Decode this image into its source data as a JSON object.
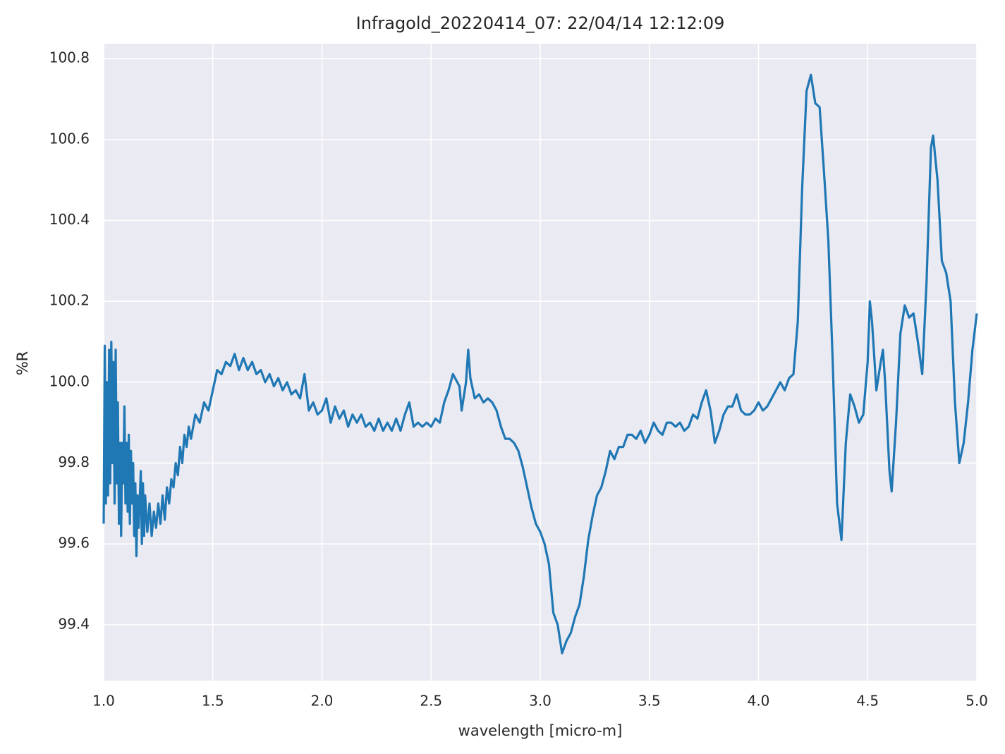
{
  "chart_data": {
    "type": "line",
    "title": "Infragold_20220414_07:  22/04/14 12:12:09",
    "xlabel": "wavelength [micro-m]",
    "ylabel": "%R",
    "x": [
      1.0,
      1.005,
      1.01,
      1.015,
      1.02,
      1.025,
      1.03,
      1.035,
      1.04,
      1.045,
      1.05,
      1.055,
      1.06,
      1.065,
      1.07,
      1.075,
      1.08,
      1.085,
      1.09,
      1.095,
      1.1,
      1.105,
      1.11,
      1.115,
      1.12,
      1.125,
      1.13,
      1.135,
      1.14,
      1.145,
      1.15,
      1.155,
      1.16,
      1.17,
      1.175,
      1.18,
      1.185,
      1.19,
      1.2,
      1.21,
      1.22,
      1.23,
      1.24,
      1.25,
      1.26,
      1.27,
      1.28,
      1.29,
      1.3,
      1.31,
      1.32,
      1.33,
      1.34,
      1.35,
      1.36,
      1.37,
      1.38,
      1.39,
      1.4,
      1.42,
      1.44,
      1.46,
      1.48,
      1.5,
      1.52,
      1.54,
      1.56,
      1.58,
      1.6,
      1.62,
      1.64,
      1.66,
      1.68,
      1.7,
      1.72,
      1.74,
      1.76,
      1.78,
      1.8,
      1.82,
      1.84,
      1.86,
      1.88,
      1.9,
      1.92,
      1.94,
      1.96,
      1.98,
      2.0,
      2.02,
      2.04,
      2.06,
      2.08,
      2.1,
      2.12,
      2.14,
      2.16,
      2.18,
      2.2,
      2.22,
      2.24,
      2.26,
      2.28,
      2.3,
      2.32,
      2.34,
      2.36,
      2.38,
      2.4,
      2.42,
      2.44,
      2.46,
      2.48,
      2.5,
      2.52,
      2.54,
      2.56,
      2.58,
      2.6,
      2.62,
      2.63,
      2.64,
      2.66,
      2.67,
      2.68,
      2.7,
      2.72,
      2.74,
      2.76,
      2.78,
      2.8,
      2.82,
      2.84,
      2.86,
      2.88,
      2.9,
      2.92,
      2.94,
      2.96,
      2.98,
      3.0,
      3.02,
      3.04,
      3.06,
      3.08,
      3.1,
      3.12,
      3.14,
      3.16,
      3.18,
      3.2,
      3.22,
      3.24,
      3.26,
      3.28,
      3.3,
      3.32,
      3.34,
      3.36,
      3.38,
      3.4,
      3.42,
      3.44,
      3.46,
      3.48,
      3.5,
      3.52,
      3.54,
      3.56,
      3.58,
      3.6,
      3.62,
      3.64,
      3.66,
      3.68,
      3.7,
      3.72,
      3.74,
      3.76,
      3.78,
      3.8,
      3.82,
      3.84,
      3.86,
      3.88,
      3.9,
      3.92,
      3.94,
      3.96,
      3.98,
      4.0,
      4.02,
      4.04,
      4.06,
      4.08,
      4.1,
      4.12,
      4.14,
      4.16,
      4.18,
      4.2,
      4.22,
      4.24,
      4.26,
      4.28,
      4.3,
      4.32,
      4.34,
      4.36,
      4.38,
      4.4,
      4.42,
      4.44,
      4.46,
      4.48,
      4.5,
      4.51,
      4.52,
      4.54,
      4.56,
      4.57,
      4.58,
      4.6,
      4.61,
      4.63,
      4.65,
      4.67,
      4.69,
      4.71,
      4.73,
      4.75,
      4.77,
      4.79,
      4.8,
      4.82,
      4.84,
      4.86,
      4.88,
      4.9,
      4.92,
      4.94,
      4.96,
      4.98,
      5.0
    ],
    "series": [
      {
        "color": "#1f77b4",
        "values": [
          99.65,
          100.09,
          99.7,
          100.0,
          99.72,
          100.08,
          99.75,
          100.1,
          99.8,
          100.05,
          99.7,
          100.08,
          99.75,
          99.95,
          99.65,
          99.85,
          99.62,
          99.85,
          99.75,
          99.94,
          99.7,
          99.85,
          99.68,
          99.87,
          99.65,
          99.83,
          99.7,
          99.8,
          99.62,
          99.75,
          99.57,
          99.72,
          99.64,
          99.78,
          99.6,
          99.75,
          99.62,
          99.72,
          99.63,
          99.7,
          99.62,
          99.68,
          99.64,
          99.7,
          99.65,
          99.72,
          99.66,
          99.74,
          99.7,
          99.76,
          99.74,
          99.8,
          99.77,
          99.84,
          99.8,
          99.87,
          99.84,
          99.89,
          99.86,
          99.92,
          99.9,
          99.95,
          99.93,
          99.98,
          100.03,
          100.02,
          100.05,
          100.04,
          100.07,
          100.03,
          100.06,
          100.03,
          100.05,
          100.02,
          100.03,
          100.0,
          100.02,
          99.99,
          100.01,
          99.98,
          100.0,
          99.97,
          99.98,
          99.96,
          100.02,
          99.93,
          99.95,
          99.92,
          99.93,
          99.96,
          99.9,
          99.94,
          99.91,
          99.93,
          99.89,
          99.92,
          99.9,
          99.92,
          99.89,
          99.9,
          99.88,
          99.91,
          99.88,
          99.9,
          99.88,
          99.91,
          99.88,
          99.92,
          99.95,
          99.89,
          99.9,
          99.89,
          99.9,
          99.89,
          99.91,
          99.9,
          99.95,
          99.98,
          100.02,
          100.0,
          99.99,
          99.93,
          100.0,
          100.08,
          100.01,
          99.96,
          99.97,
          99.95,
          99.96,
          99.95,
          99.93,
          99.89,
          99.86,
          99.86,
          99.85,
          99.83,
          99.79,
          99.74,
          99.69,
          99.65,
          99.63,
          99.6,
          99.55,
          99.43,
          99.4,
          99.33,
          99.36,
          99.38,
          99.42,
          99.45,
          99.52,
          99.61,
          99.67,
          99.72,
          99.74,
          99.78,
          99.83,
          99.81,
          99.84,
          99.84,
          99.87,
          99.87,
          99.86,
          99.88,
          99.85,
          99.87,
          99.9,
          99.88,
          99.87,
          99.9,
          99.9,
          99.89,
          99.9,
          99.88,
          99.89,
          99.92,
          99.91,
          99.95,
          99.98,
          99.93,
          99.85,
          99.88,
          99.92,
          99.94,
          99.94,
          99.97,
          99.93,
          99.92,
          99.92,
          99.93,
          99.95,
          99.93,
          99.94,
          99.96,
          99.98,
          100.0,
          99.98,
          100.01,
          100.02,
          100.15,
          100.48,
          100.72,
          100.76,
          100.69,
          100.68,
          100.52,
          100.35,
          100.05,
          99.7,
          99.61,
          99.85,
          99.97,
          99.94,
          99.9,
          99.92,
          100.05,
          100.2,
          100.15,
          99.98,
          100.05,
          100.08,
          100.0,
          99.78,
          99.73,
          99.9,
          100.12,
          100.19,
          100.16,
          100.17,
          100.1,
          100.02,
          100.25,
          100.58,
          100.61,
          100.5,
          100.3,
          100.27,
          100.2,
          99.95,
          99.8,
          99.85,
          99.95,
          100.08,
          100.17
        ]
      }
    ],
    "xlim": [
      1.0,
      5.0
    ],
    "xticks": [
      {
        "value": 1,
        "label": "1.0"
      },
      1.5,
      {
        "value": 2,
        "label": "2.0"
      },
      2.5,
      {
        "value": 3,
        "label": "3.0"
      },
      3.5,
      {
        "value": 4,
        "label": "4.0"
      },
      4.5,
      {
        "value": 5,
        "label": "5.0"
      }
    ],
    "ylim": [
      99.262,
      100.837
    ],
    "yticks": [
      99.4,
      99.6,
      99.8,
      {
        "value": 100,
        "label": "100.0"
      },
      100.2,
      100.4,
      100.6,
      100.8
    ],
    "grid": true
  }
}
